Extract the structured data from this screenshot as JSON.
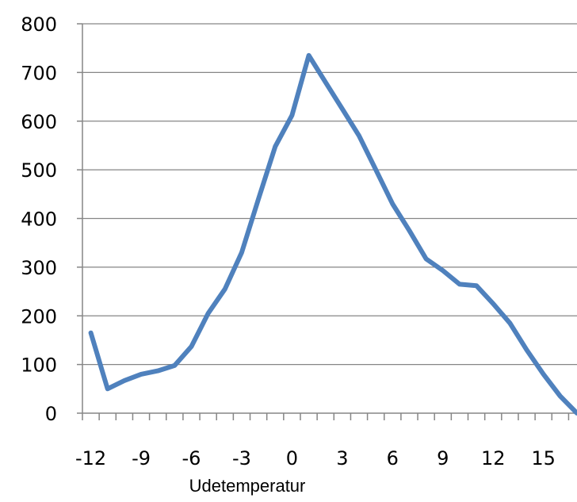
{
  "chart_data": {
    "type": "line",
    "title": "",
    "xlabel": "Udetemperatur",
    "ylabel": "",
    "ylim": [
      0,
      800
    ],
    "xlim": [
      -12.5,
      17
    ],
    "grid": true,
    "legend": "none",
    "colors": {
      "line": "#4F81BD",
      "grid": "#868686",
      "axis": "#868686"
    },
    "yticks": [
      0,
      100,
      200,
      300,
      400,
      500,
      600,
      700,
      800
    ],
    "xticks": [
      -12,
      -9,
      -6,
      -3,
      0,
      3,
      6,
      9,
      12,
      15
    ],
    "xtick_labels": [
      "-12",
      "-9",
      "-6",
      "-3",
      "0",
      "3",
      "6",
      "9",
      "12",
      "15"
    ],
    "ytick_labels": [
      "0",
      "100",
      "200",
      "300",
      "400",
      "500",
      "600",
      "700",
      "800"
    ],
    "series": [
      {
        "x": [
          -12,
          -11,
          -10,
          -9,
          -8,
          -7,
          -6,
          -5,
          -4,
          -3,
          -2,
          -1,
          0,
          1,
          2,
          3,
          4,
          5,
          6,
          7,
          8,
          9,
          10,
          11,
          12,
          13,
          14,
          15,
          16,
          17
        ],
        "values": [
          165,
          50,
          67,
          80,
          87,
          98,
          137,
          205,
          255,
          330,
          440,
          548,
          612,
          735,
          680,
          625,
          570,
          500,
          430,
          375,
          317,
          293,
          265,
          262,
          225,
          185,
          130,
          80,
          35,
          0
        ]
      }
    ]
  }
}
